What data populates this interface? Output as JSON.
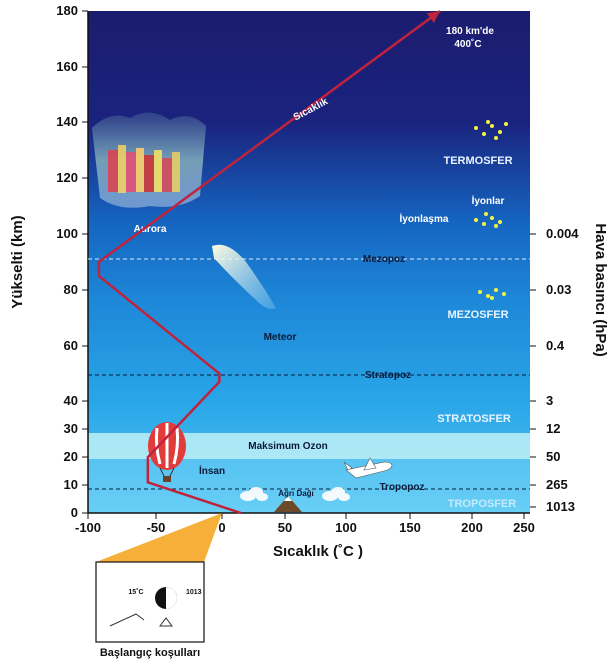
{
  "axes": {
    "y_left_title": "Yükselti (km)",
    "y_right_title": "Hava basıncı (hPa)",
    "x_title": "Sıcaklık (˚C )",
    "y_left_ticks": [
      "180",
      "160",
      "140",
      "120",
      "100",
      "80",
      "60",
      "40",
      "30",
      "20",
      "10",
      "0"
    ],
    "x_ticks": [
      "-100",
      "-50",
      "0",
      "50",
      "100",
      "150",
      "200",
      "250"
    ],
    "pressure_ticks": [
      "0.004",
      "0.03",
      "0.4",
      "3",
      "12",
      "50",
      "265",
      "1013"
    ]
  },
  "layers": {
    "termosfer": "TERMOSFER",
    "mezosfer": "MEZOSFER",
    "stratosfer": "STRATOSFER",
    "troposfer": "TROPOSFER"
  },
  "boundaries": {
    "mezopoz": "Mezopoz",
    "stratopoz": "Stratopoz",
    "tropopoz": "Tropopoz"
  },
  "features": {
    "aurora": "Aurora",
    "meteor": "Meteor",
    "iyonlar": "İyonlar",
    "iyonlasma": "İyonlaşma",
    "ozon": "Maksimum Ozon",
    "insan": "İnsan",
    "agri": "Ağrı Dağı",
    "sicaklik": "Sıcaklık",
    "top_note_1": "180 km'de",
    "top_note_2": "400˚C"
  },
  "inset": {
    "caption": "Başlangıç koşulları",
    "temp": "15˚C",
    "pressure": "1013"
  },
  "colors": {
    "sky_top": "#1b1c6e",
    "sky_mid": "#1565b8",
    "sky_bottom": "#4fc3f7",
    "ozone_band": "#bff0f7",
    "temp_curve": "#c0233c",
    "inset_triangle": "#f5a623",
    "ion_dots": "#f5f542"
  },
  "icons": [
    "hot-air-balloon-icon",
    "airplane-icon",
    "cloud-icon",
    "mountain-icon",
    "meteor-icon",
    "aurora-icon"
  ],
  "chart_data": {
    "type": "line",
    "x": [
      15,
      -56,
      -56,
      -2,
      -2,
      -92,
      -92,
      400
    ],
    "y": [
      0,
      11,
      20,
      47,
      50,
      85,
      90,
      180
    ],
    "xlabel": "Sıcaklık (˚C )",
    "ylabel": "Yükselti (km)",
    "xlim": [
      -100,
      250
    ],
    "ylim": [
      0,
      180
    ],
    "pressure_axis": [
      {
        "altitude_km": 100,
        "hPa": "0.004"
      },
      {
        "altitude_km": 80,
        "hPa": "0.03"
      },
      {
        "altitude_km": 60,
        "hPa": "0.4"
      },
      {
        "altitude_km": 40,
        "hPa": "3"
      },
      {
        "altitude_km": 30,
        "hPa": "12"
      },
      {
        "altitude_km": 20,
        "hPa": "50"
      },
      {
        "altitude_km": 10,
        "hPa": "265"
      },
      {
        "altitude_km": 0,
        "hPa": "1013"
      }
    ]
  }
}
